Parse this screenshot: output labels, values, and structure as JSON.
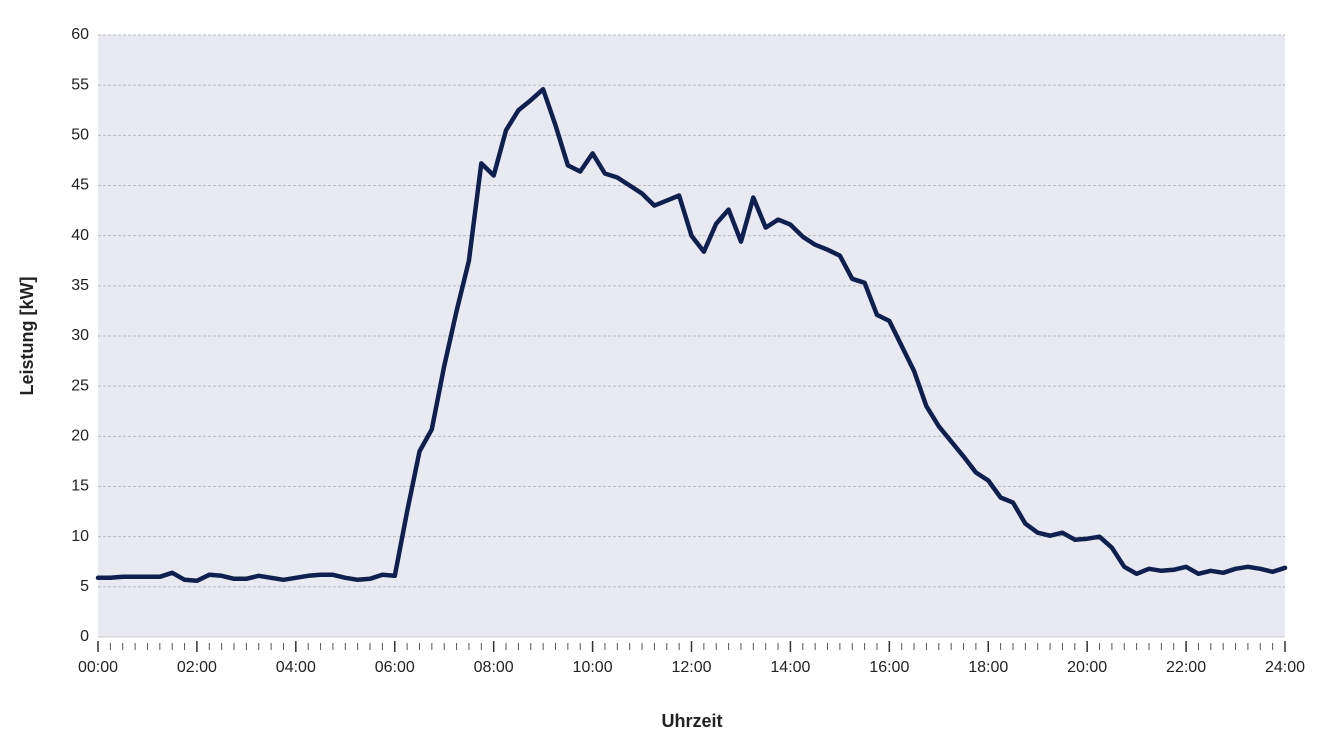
{
  "chart_data": {
    "type": "line",
    "x_label": "Uhrzeit",
    "y_label": "Leistung [kW]",
    "xlim": [
      0,
      24
    ],
    "ylim": [
      0,
      60
    ],
    "xticks": [
      {
        "value": 0,
        "label": "00:00"
      },
      {
        "value": 2,
        "label": "02:00"
      },
      {
        "value": 4,
        "label": "04:00"
      },
      {
        "value": 6,
        "label": "06:00"
      },
      {
        "value": 8,
        "label": "08:00"
      },
      {
        "value": 10,
        "label": "10:00"
      },
      {
        "value": 12,
        "label": "12:00"
      },
      {
        "value": 14,
        "label": "14:00"
      },
      {
        "value": 16,
        "label": "16:00"
      },
      {
        "value": 18,
        "label": "18:00"
      },
      {
        "value": 20,
        "label": "20:00"
      },
      {
        "value": 22,
        "label": "22:00"
      },
      {
        "value": 24,
        "label": "24:00"
      }
    ],
    "yticks": [
      0,
      5,
      10,
      15,
      20,
      25,
      30,
      35,
      40,
      45,
      50,
      55,
      60
    ],
    "grid": true,
    "x": [
      0,
      0.25,
      0.5,
      0.75,
      1,
      1.25,
      1.5,
      1.75,
      2,
      2.25,
      2.5,
      2.75,
      3,
      3.25,
      3.5,
      3.75,
      4,
      4.25,
      4.5,
      4.75,
      5,
      5.25,
      5.5,
      5.75,
      6,
      6.25,
      6.5,
      6.75,
      7,
      7.25,
      7.5,
      7.75,
      8,
      8.25,
      8.5,
      8.75,
      9,
      9.25,
      9.5,
      9.75,
      10,
      10.25,
      10.5,
      10.75,
      11,
      11.25,
      11.5,
      11.75,
      12,
      12.25,
      12.5,
      12.75,
      13,
      13.25,
      13.5,
      13.75,
      14,
      14.25,
      14.5,
      14.75,
      15,
      15.25,
      15.5,
      15.75,
      16,
      16.25,
      16.5,
      16.75,
      17,
      17.25,
      17.5,
      17.75,
      18,
      18.25,
      18.5,
      18.75,
      19,
      19.25,
      19.5,
      19.75,
      20,
      20.25,
      20.5,
      20.75,
      21,
      21.25,
      21.5,
      21.75,
      22,
      22.25,
      22.5,
      22.75,
      23,
      23.25,
      23.5,
      23.75,
      24
    ],
    "series": [
      {
        "color": "#0f1f4f",
        "values": [
          5.9,
          5.9,
          6.0,
          6.0,
          6.0,
          6.0,
          6.4,
          5.7,
          5.6,
          6.2,
          6.1,
          5.8,
          5.8,
          6.1,
          5.9,
          5.7,
          5.9,
          6.1,
          6.2,
          6.2,
          5.9,
          5.7,
          5.8,
          6.2,
          6.1,
          12.5,
          18.5,
          20.7,
          27,
          32.5,
          37.5,
          47.2,
          46,
          50.5,
          52.5,
          53.5,
          54.6,
          51,
          47,
          46.4,
          48.2,
          46.2,
          45.8,
          45,
          44.2,
          43,
          43.5,
          44,
          40,
          38.4,
          41.2,
          42.6,
          39.4,
          43.8,
          40.8,
          41.6,
          41.1,
          39.9,
          39.1,
          38.6,
          38,
          35.7,
          35.3,
          32.1,
          31.5,
          29,
          26.5,
          23,
          21,
          19.5,
          18,
          16.4,
          15.6,
          13.9,
          13.4,
          11.3,
          10.4,
          10.1,
          10.4,
          9.7,
          9.8,
          10.0,
          8.9,
          7.0,
          6.3,
          6.8,
          6.6,
          6.7,
          7.0,
          6.3,
          6.6,
          6.4,
          6.8,
          7.0,
          6.8,
          6.5,
          6.9
        ]
      }
    ]
  }
}
